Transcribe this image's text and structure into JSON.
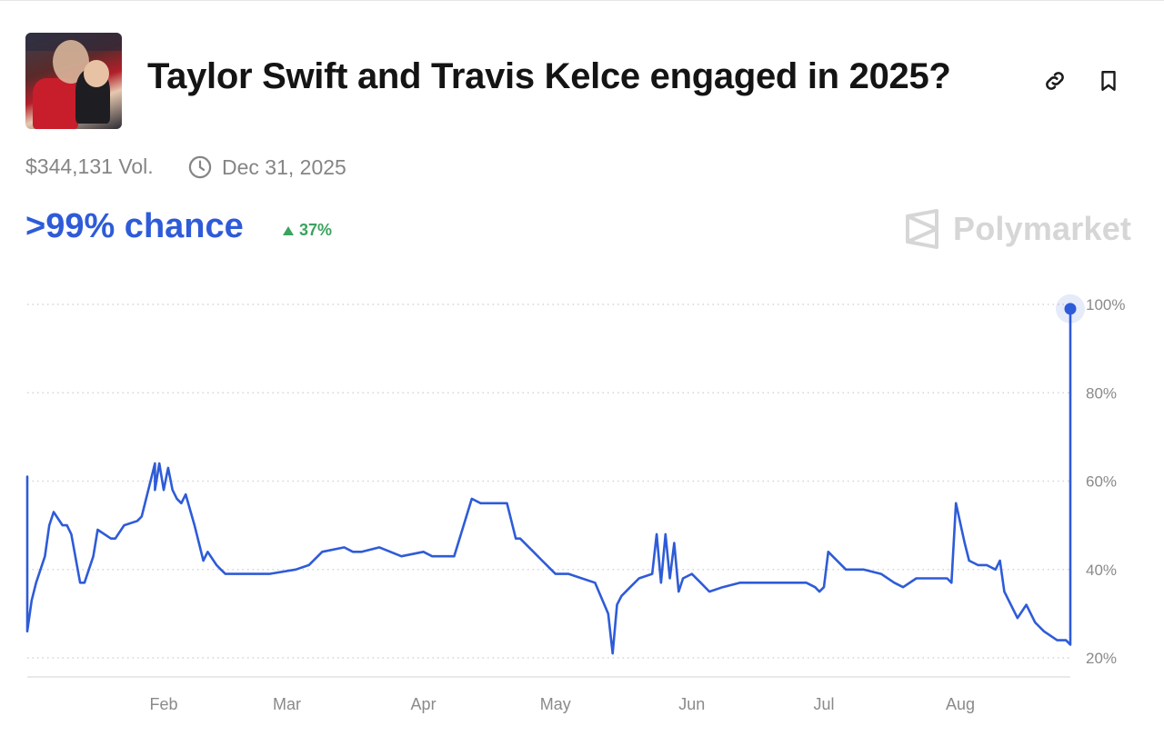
{
  "market": {
    "title": "Taylor Swift and Travis Kelce engaged in 2025?",
    "volume": "$344,131 Vol.",
    "end_date": "Dec 31, 2025",
    "chance": ">99% chance",
    "change": "37%",
    "brand": "Polymarket"
  },
  "colors": {
    "line": "#2e5bd8",
    "change_up": "#3aa35e",
    "brand": "#d6d6d6"
  },
  "icons": {
    "link": "link-icon",
    "bookmark": "bookmark-icon",
    "clock": "clock-icon",
    "up": "triangle-up-icon",
    "brand": "polymarket-logo-icon"
  },
  "chart_data": {
    "type": "line",
    "ylabel": "",
    "xlabel": "",
    "ylim": [
      20,
      100
    ],
    "yticks": [
      "20%",
      "40%",
      "60%",
      "80%",
      "100%"
    ],
    "xticks": [
      "Feb",
      "Mar",
      "Apr",
      "May",
      "Jun",
      "Jul",
      "Aug"
    ],
    "grid": true,
    "series": [
      {
        "values_x_unit": "date",
        "x": [
          "2025-01-01",
          "2025-01-01",
          "2025-01-02",
          "2025-01-03",
          "2025-01-05",
          "2025-01-06",
          "2025-01-07",
          "2025-01-09",
          "2025-01-10",
          "2025-01-11",
          "2025-01-13",
          "2025-01-14",
          "2025-01-16",
          "2025-01-17",
          "2025-01-20",
          "2025-01-21",
          "2025-01-23",
          "2025-01-26",
          "2025-01-27",
          "2025-01-30",
          "2025-01-30",
          "2025-01-31",
          "2025-02-01",
          "2025-02-02",
          "2025-02-03",
          "2025-02-04",
          "2025-02-05",
          "2025-02-06",
          "2025-02-08",
          "2025-02-10",
          "2025-02-11",
          "2025-02-13",
          "2025-02-14",
          "2025-02-15",
          "2025-02-17",
          "2025-02-19",
          "2025-02-22",
          "2025-02-25",
          "2025-03-03",
          "2025-03-06",
          "2025-03-09",
          "2025-03-14",
          "2025-03-16",
          "2025-03-18",
          "2025-03-22",
          "2025-03-27",
          "2025-04-01",
          "2025-04-03",
          "2025-04-05",
          "2025-04-08",
          "2025-04-12",
          "2025-04-14",
          "2025-04-15",
          "2025-04-20",
          "2025-04-22",
          "2025-04-23",
          "2025-04-26",
          "2025-04-28",
          "2025-05-01",
          "2025-05-04",
          "2025-05-07",
          "2025-05-10",
          "2025-05-13",
          "2025-05-14",
          "2025-05-15",
          "2025-05-16",
          "2025-05-18",
          "2025-05-20",
          "2025-05-23",
          "2025-05-24",
          "2025-05-25",
          "2025-05-26",
          "2025-05-27",
          "2025-05-28",
          "2025-05-29",
          "2025-05-30",
          "2025-06-01",
          "2025-06-03",
          "2025-06-05",
          "2025-06-08",
          "2025-06-12",
          "2025-06-17",
          "2025-06-22",
          "2025-06-27",
          "2025-06-29",
          "2025-06-30",
          "2025-07-01",
          "2025-07-02",
          "2025-07-06",
          "2025-07-10",
          "2025-07-14",
          "2025-07-17",
          "2025-07-19",
          "2025-07-22",
          "2025-07-26",
          "2025-07-29",
          "2025-07-30",
          "2025-07-31",
          "2025-08-02",
          "2025-08-03",
          "2025-08-05",
          "2025-08-07",
          "2025-08-09",
          "2025-08-10",
          "2025-08-11",
          "2025-08-14",
          "2025-08-16",
          "2025-08-18",
          "2025-08-20",
          "2025-08-23",
          "2025-08-25",
          "2025-08-26",
          "2025-08-26",
          "2025-08-26"
        ],
        "y": [
          61,
          26,
          33,
          37,
          43,
          50,
          53,
          50,
          50,
          48,
          37,
          37,
          43,
          49,
          47,
          47,
          50,
          51,
          52,
          64,
          58,
          64,
          58,
          63,
          58,
          56,
          55,
          57,
          50,
          42,
          44,
          41,
          40,
          39,
          39,
          39,
          39,
          39,
          40,
          41,
          44,
          45,
          44,
          44,
          45,
          43,
          44,
          43,
          43,
          43,
          56,
          55,
          55,
          55,
          47,
          47,
          44,
          42,
          39,
          39,
          38,
          37,
          30,
          21,
          32,
          34,
          36,
          38,
          39,
          48,
          37,
          48,
          38,
          46,
          35,
          38,
          39,
          37,
          35,
          36,
          37,
          37,
          37,
          37,
          36,
          35,
          36,
          44,
          40,
          40,
          39,
          37,
          36,
          38,
          38,
          38,
          37,
          55,
          46,
          42,
          41,
          41,
          40,
          42,
          35,
          29,
          32,
          28,
          26,
          24,
          24,
          23,
          37,
          99
        ]
      }
    ]
  }
}
